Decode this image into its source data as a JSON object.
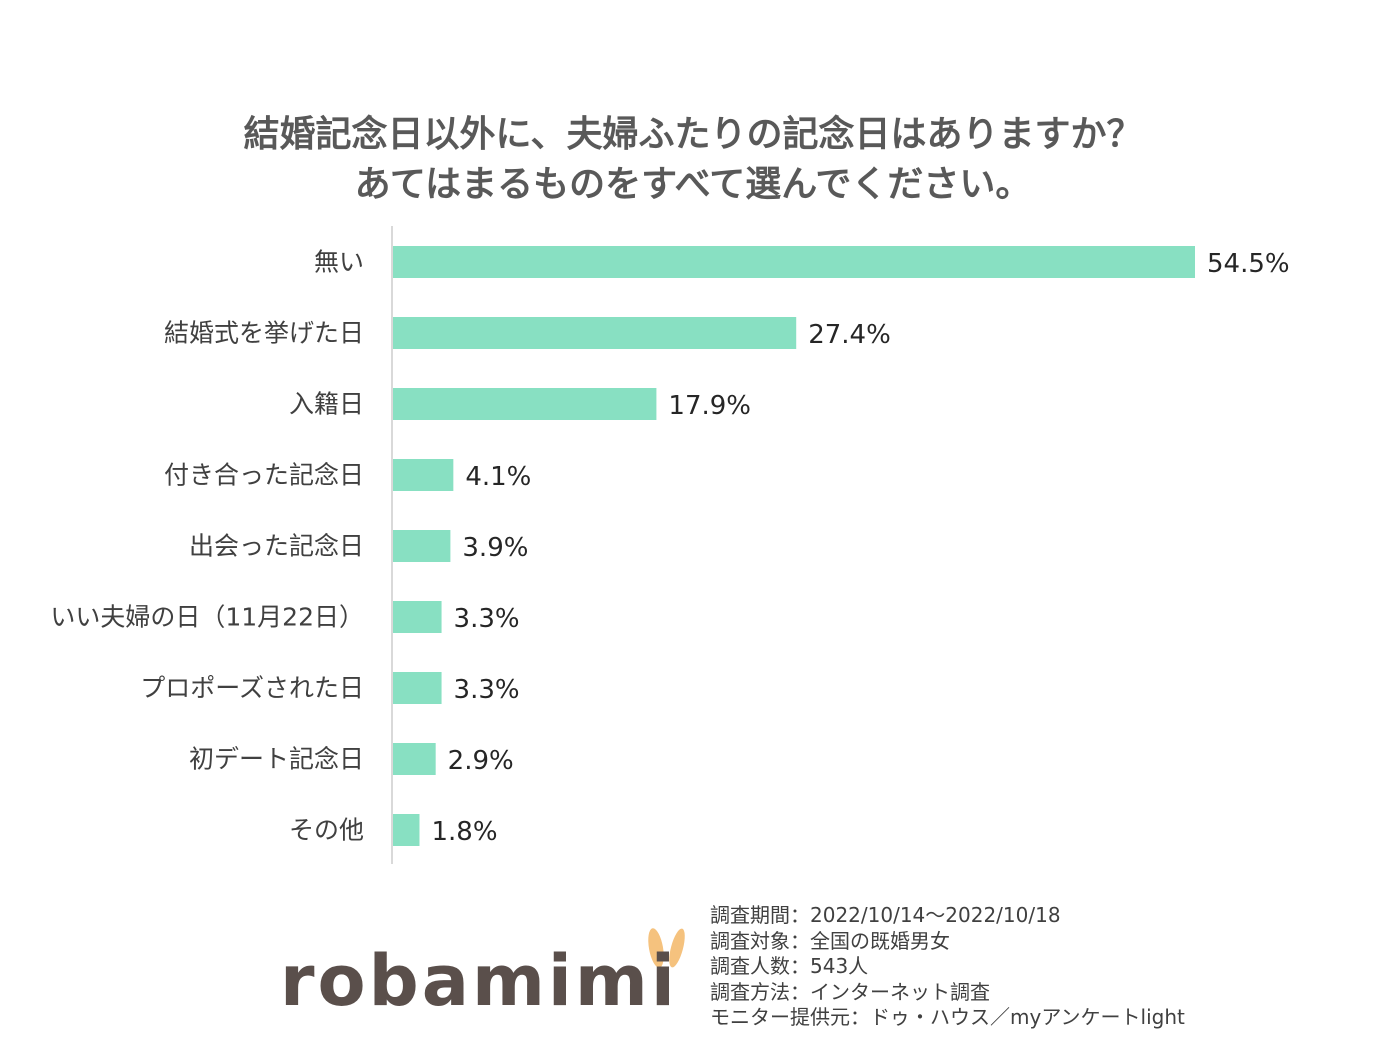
{
  "chart_data": {
    "type": "bar",
    "orientation": "horizontal",
    "title_lines": [
      "結婚記念日以外に、夫婦ふたりの記念日はありますか？",
      "あてはまるものをすべて選んでください。"
    ],
    "categories": [
      "無い",
      "結婚式を挙げた日",
      "入籍日",
      "付き合った記念日",
      "出会った記念日",
      "いい夫婦の日（11月22日）",
      "プロポーズされた日",
      "初デート記念日",
      "その他"
    ],
    "values": [
      54.5,
      27.4,
      17.9,
      4.1,
      3.9,
      3.3,
      3.3,
      2.9,
      1.8
    ],
    "value_labels": [
      "54.5%",
      "27.4%",
      "17.9%",
      "4.1%",
      "3.9%",
      "3.3%",
      "3.3%",
      "2.9%",
      "1.8%"
    ],
    "unit": "%",
    "bar_color": "#88e0c2",
    "grid": false,
    "legend": "none"
  },
  "brand": {
    "logo_text": "robamimi",
    "logo_color": "#5a4f4b",
    "ear_color": "#f5c27e"
  },
  "survey_info": [
    "調査期間：2022/10/14～2022/10/18",
    "調査対象：全国の既婚男女",
    "調査人数：543人",
    "調査方法：インターネット調査",
    "モニター提供元：ドゥ・ハウス／myアンケートlight"
  ]
}
